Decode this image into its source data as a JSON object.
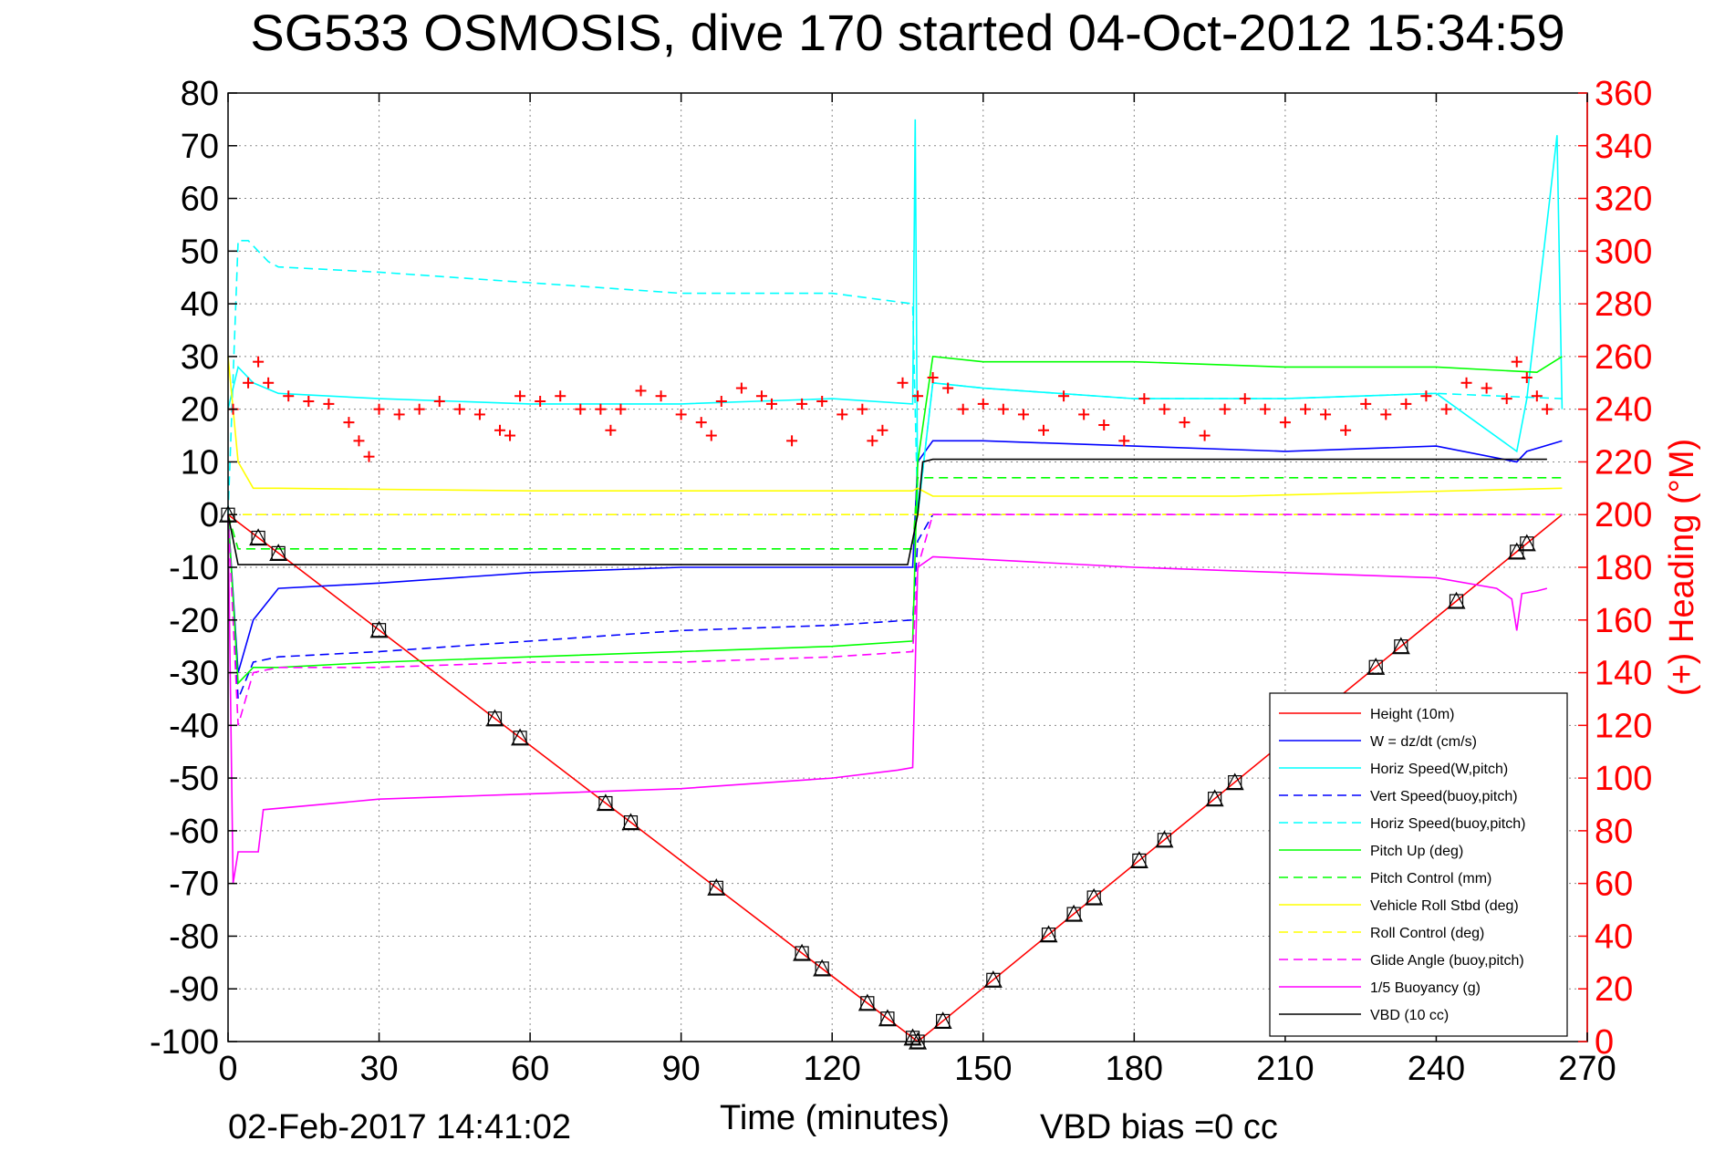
{
  "chart_data": {
    "type": "line",
    "title": "SG533 OSMOSIS, dive 170 started 04-Oct-2012 15:34:59",
    "xlabel": "Time (minutes)",
    "ylabel_right": "(+) Heading (°M)",
    "xlim": [
      0,
      270
    ],
    "ylim": [
      -100,
      80
    ],
    "ylim_right": [
      0,
      360
    ],
    "x_ticks": [
      0,
      30,
      60,
      90,
      120,
      150,
      180,
      210,
      240,
      270
    ],
    "y_ticks": [
      -100,
      -90,
      -80,
      -70,
      -60,
      -50,
      -40,
      -30,
      -20,
      -10,
      0,
      10,
      20,
      30,
      40,
      50,
      60,
      70,
      80
    ],
    "y_right_ticks": [
      0,
      20,
      40,
      60,
      80,
      100,
      120,
      140,
      160,
      180,
      200,
      220,
      240,
      260,
      280,
      300,
      320,
      340,
      360
    ],
    "grid": true,
    "legend_position": "bottom-right",
    "footer_left": "02-Feb-2017 14:41:02",
    "footer_right": "VBD bias =0 cc",
    "series": [
      {
        "name": "Height (10m)",
        "color": "#ff0000",
        "style": "solid",
        "marker": "triangle-box",
        "x": [
          0,
          137,
          265
        ],
        "y": [
          0,
          -100,
          0
        ]
      },
      {
        "name": "W = dz/dt (cm/s)",
        "color": "#0000ff",
        "style": "solid",
        "x": [
          0,
          2,
          5,
          10,
          30,
          60,
          90,
          120,
          136,
          137,
          140,
          150,
          180,
          210,
          240,
          256,
          258,
          265
        ],
        "y": [
          0,
          -30,
          -20,
          -14,
          -13,
          -11,
          -10,
          -10,
          -10,
          10,
          14,
          14,
          13,
          12,
          13,
          10,
          12,
          14
        ]
      },
      {
        "name": "Horiz Speed(W,pitch)",
        "color": "#00ffff",
        "style": "solid",
        "x": [
          0,
          2,
          5,
          10,
          30,
          60,
          90,
          120,
          136,
          136.5,
          137,
          140,
          150,
          180,
          210,
          240,
          256,
          258,
          264,
          265
        ],
        "y": [
          20,
          28,
          25,
          23,
          22,
          21,
          21,
          22,
          21,
          75,
          0,
          25,
          24,
          22,
          22,
          23,
          12,
          22,
          72,
          20
        ]
      },
      {
        "name": "Vert Speed(buoy,pitch)",
        "color": "#0000ff",
        "style": "dashed",
        "x": [
          0,
          2,
          5,
          10,
          30,
          60,
          90,
          120,
          136,
          137,
          140,
          150,
          180,
          210,
          240,
          265
        ],
        "y": [
          0,
          -35,
          -28,
          -27,
          -26,
          -24,
          -22,
          -21,
          -20,
          -5,
          0,
          0,
          0,
          0,
          0,
          0
        ]
      },
      {
        "name": "Horiz Speed(buoy,pitch)",
        "color": "#00ffff",
        "style": "dashed",
        "x": [
          0,
          2,
          4,
          8,
          10,
          30,
          60,
          90,
          120,
          136,
          137,
          140,
          150,
          180,
          210,
          240,
          265
        ],
        "y": [
          0,
          52,
          52,
          48,
          47,
          46,
          44,
          42,
          42,
          40,
          0,
          25,
          24,
          22,
          22,
          23,
          22
        ]
      },
      {
        "name": "Pitch Up (deg)",
        "color": "#00ff00",
        "style": "solid",
        "x": [
          0,
          2,
          5,
          10,
          30,
          60,
          90,
          120,
          136,
          137,
          140,
          150,
          180,
          210,
          240,
          260,
          265
        ],
        "y": [
          0,
          -32,
          -29,
          -29,
          -28,
          -27,
          -26,
          -25,
          -24,
          10,
          30,
          29,
          29,
          28,
          28,
          27,
          30
        ]
      },
      {
        "name": "Pitch Control (mm)",
        "color": "#00ff00",
        "style": "dashed",
        "x": [
          0,
          2,
          136,
          137,
          265
        ],
        "y": [
          0,
          -6.5,
          -6.5,
          7,
          7
        ]
      },
      {
        "name": "Vehicle Roll Stbd (deg)",
        "color": "#ffff00",
        "style": "solid",
        "x": [
          0,
          2,
          5,
          10,
          60,
          120,
          136,
          137,
          140,
          200,
          265
        ],
        "y": [
          30,
          10,
          5,
          5,
          4.5,
          4.5,
          4.5,
          5,
          3.5,
          3.5,
          5
        ]
      },
      {
        "name": "Roll Control (deg)",
        "color": "#ffff00",
        "style": "dashed",
        "x": [
          0,
          265
        ],
        "y": [
          0,
          0
        ]
      },
      {
        "name": "Glide Angle (buoy,pitch)",
        "color": "#ff00ff",
        "style": "dashed",
        "x": [
          0,
          2,
          5,
          10,
          30,
          60,
          90,
          120,
          136,
          137,
          140,
          265
        ],
        "y": [
          0,
          -40,
          -30,
          -29,
          -29,
          -28,
          -28,
          -27,
          -26,
          -10,
          0,
          0
        ]
      },
      {
        "name": "1/5 Buoyancy (g)",
        "color": "#ff00ff",
        "style": "solid",
        "x": [
          0,
          1,
          2,
          6,
          7,
          30,
          60,
          90,
          120,
          133,
          136,
          137,
          140,
          160,
          180,
          210,
          240,
          252,
          255,
          256,
          257,
          260,
          262
        ],
        "y": [
          0,
          -70,
          -64,
          -64,
          -56,
          -54,
          -53,
          -52,
          -50,
          -48.5,
          -48,
          -10,
          -8,
          -9,
          -10,
          -11,
          -12,
          -14,
          -16,
          -22,
          -15,
          -14.5,
          -14
        ]
      },
      {
        "name": "VBD (10 cc)",
        "color": "#000000",
        "style": "solid",
        "x": [
          0,
          2,
          135,
          137,
          138,
          140,
          260,
          262
        ],
        "y": [
          0,
          -9.5,
          -9.5,
          0,
          10,
          10.5,
          10.5,
          10.5
        ]
      }
    ],
    "heading_markers": {
      "color": "#ff0000",
      "marker": "+",
      "x": [
        1,
        4,
        6,
        8,
        12,
        16,
        20,
        24,
        26,
        28,
        30,
        34,
        38,
        42,
        46,
        50,
        54,
        56,
        58,
        62,
        66,
        70,
        74,
        76,
        78,
        82,
        86,
        90,
        94,
        96,
        98,
        102,
        106,
        108,
        112,
        114,
        118,
        122,
        126,
        128,
        130,
        134,
        137,
        140,
        143,
        146,
        150,
        154,
        158,
        162,
        166,
        170,
        174,
        178,
        182,
        186,
        190,
        194,
        198,
        202,
        206,
        210,
        214,
        218,
        222,
        226,
        230,
        234,
        238,
        242,
        246,
        250,
        254,
        256,
        258,
        260,
        262
      ],
      "y": [
        240,
        250,
        258,
        250,
        245,
        243,
        242,
        235,
        228,
        222,
        240,
        238,
        240,
        243,
        240,
        238,
        232,
        230,
        245,
        243,
        245,
        240,
        240,
        232,
        240,
        247,
        245,
        238,
        235,
        230,
        243,
        248,
        245,
        242,
        228,
        242,
        243,
        238,
        240,
        228,
        232,
        250,
        245,
        252,
        248,
        240,
        242,
        240,
        238,
        232,
        245,
        238,
        234,
        228,
        244,
        240,
        235,
        230,
        240,
        244,
        240,
        235,
        240,
        238,
        232,
        242,
        238,
        242,
        245,
        240,
        250,
        248,
        244,
        258,
        252,
        245,
        240
      ]
    }
  }
}
